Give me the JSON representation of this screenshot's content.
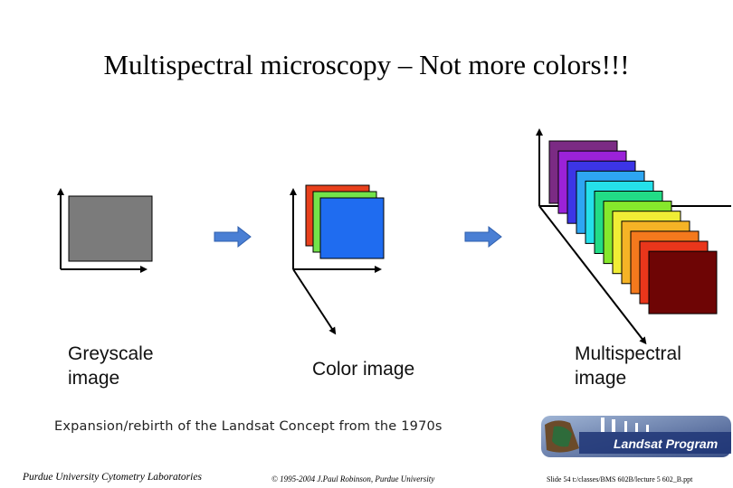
{
  "slide": {
    "title": "Multispectral microscopy – Not more colors!!!",
    "captions": {
      "greyscale": "Greyscale image",
      "color": "Color image",
      "multispectral": "Multispectral image"
    },
    "subtitle": "Expansion/rebirth of the Landsat Concept from the 1970s",
    "logo_text": "Landsat Program",
    "footer": {
      "left": "Purdue University Cytometry Laboratories",
      "center": "© 1995-2004 J.Paul Robinson, Purdue University",
      "right": "Slide 54 t:/classes/BMS 602B/lecture 5 602_B.ppt"
    }
  },
  "colors": {
    "greyscale_square": "#7b7b7b",
    "arrow_blue": "#4a7fd4",
    "rgb_stack": [
      "#e8401c",
      "#73e34a",
      "#1f6cf0"
    ],
    "spectral_stack": [
      "#7b2b84",
      "#9b22d8",
      "#3c35e6",
      "#2ea6f2",
      "#25e0ea",
      "#22dc86",
      "#86e82c",
      "#f0ed35",
      "#f5b326",
      "#f4791d",
      "#e9361b",
      "#6e0505"
    ]
  }
}
